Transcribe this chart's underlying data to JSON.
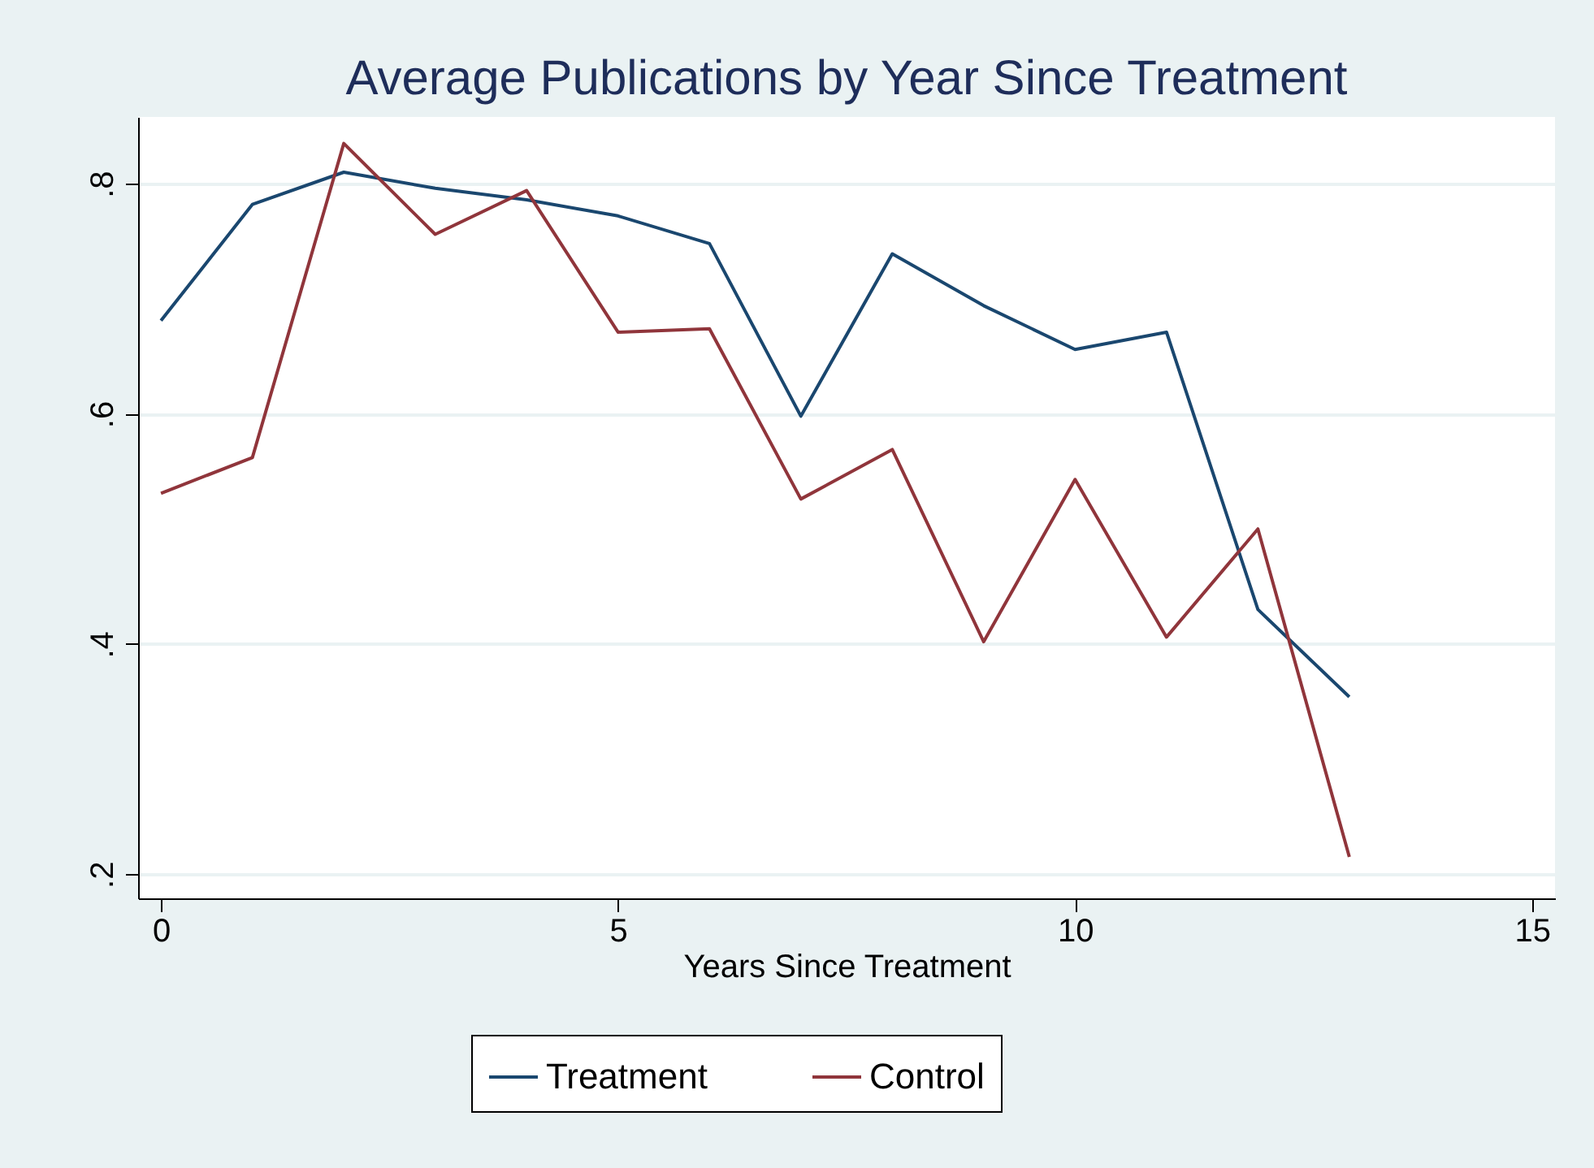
{
  "chart_data": {
    "type": "line",
    "title": "Average Publications by Year Since Treatment",
    "xlabel": "Years Since Treatment",
    "x": [
      0,
      1,
      2,
      3,
      4,
      5,
      6,
      7,
      8,
      9,
      10,
      11,
      12,
      13
    ],
    "series": [
      {
        "name": "Treatment",
        "color": "#1a476f",
        "values": [
          0.681,
          0.782,
          0.81,
          0.796,
          0.786,
          0.772,
          0.748,
          0.598,
          0.739,
          0.694,
          0.656,
          0.671,
          0.43,
          0.354
        ]
      },
      {
        "name": "Control",
        "color": "#90353b",
        "values": [
          0.531,
          0.562,
          0.835,
          0.756,
          0.794,
          0.671,
          0.674,
          0.526,
          0.569,
          0.402,
          0.543,
          0.406,
          0.5,
          0.215
        ]
      }
    ],
    "xlim": [
      -0.25,
      15.25
    ],
    "xticks": [
      0,
      5,
      10,
      15
    ],
    "ylim": [
      0.179,
      0.858
    ],
    "yticks": [
      {
        "value": 0.2,
        "label": ".2"
      },
      {
        "value": 0.4,
        "label": ".4"
      },
      {
        "value": 0.6,
        "label": ".6"
      },
      {
        "value": 0.8,
        "label": ".8"
      }
    ],
    "grid": "y",
    "legend": "bottom",
    "marker": "none",
    "line_style": "solid"
  }
}
